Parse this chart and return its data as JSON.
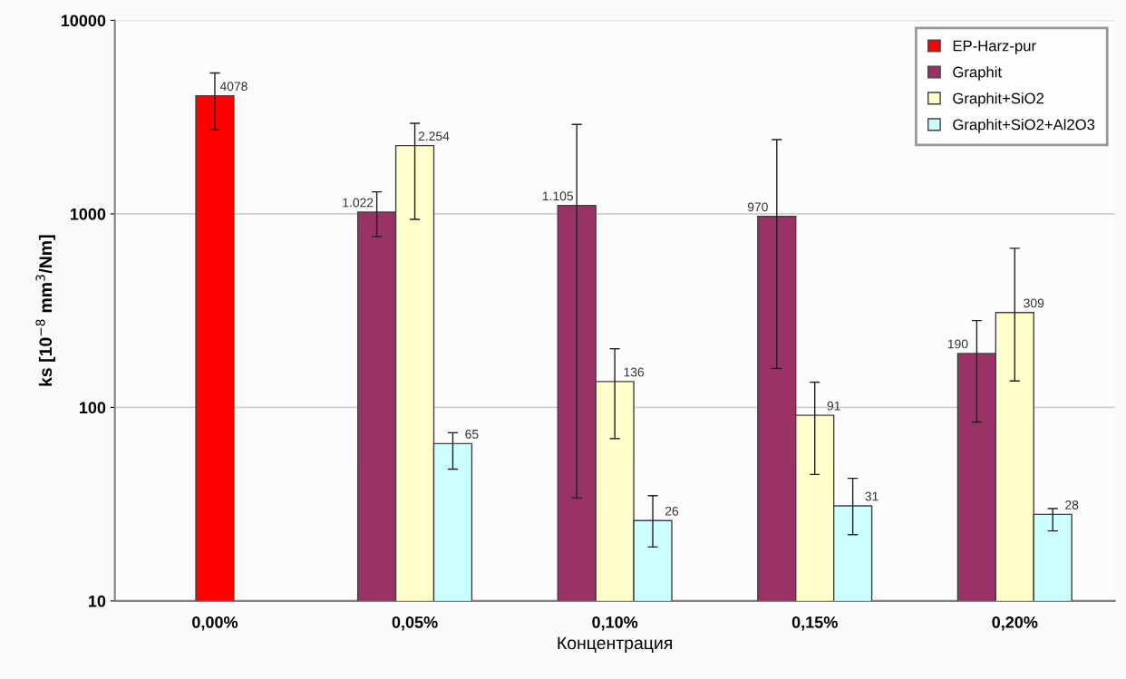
{
  "chart_data": {
    "type": "bar",
    "xlabel": "Концентрация",
    "ylabel": "ks [10$^{−8}$ mm$^{3}$/Nm]",
    "categories": [
      "0,00%",
      "0,05%",
      "0,10%",
      "0,15%",
      "0,20%"
    ],
    "series": [
      {
        "name": "EP-Harz-pur",
        "color": "#ff0000",
        "values": [
          4078,
          null,
          null,
          null,
          null
        ],
        "value_labels": [
          "4078",
          null,
          null,
          null,
          null
        ],
        "errors": [
          [
            2720,
            5350
          ],
          null,
          null,
          null,
          null
        ]
      },
      {
        "name": "Graphit",
        "color": "#993366",
        "values": [
          null,
          1022,
          1105,
          970,
          190
        ],
        "value_labels": [
          null,
          "1.022",
          "1.105",
          "970",
          "190"
        ],
        "errors": [
          null,
          [
            763,
            1300
          ],
          [
            34,
            2900
          ],
          [
            159,
            2420
          ],
          [
            84,
            281
          ]
        ]
      },
      {
        "name": "Graphit+SiO2",
        "color": "#ffffcc",
        "values": [
          null,
          2254,
          136,
          91,
          309
        ],
        "value_labels": [
          null,
          "2.254",
          "136",
          "91",
          "309"
        ],
        "errors": [
          null,
          [
            937,
            2940
          ],
          [
            69,
            201
          ],
          [
            45,
            135
          ],
          [
            137,
            664
          ]
        ]
      },
      {
        "name": "Graphit+SiO2+Al2O3",
        "color": "#ccffff",
        "values": [
          null,
          65,
          26,
          31,
          28
        ],
        "value_labels": [
          null,
          "65",
          "26",
          "31",
          "28"
        ],
        "errors": [
          null,
          [
            48,
            74
          ],
          [
            19,
            35
          ],
          [
            22,
            43
          ],
          [
            23,
            30
          ]
        ]
      }
    ],
    "log": "y",
    "ylim": [
      10,
      10000
    ],
    "yticks": [
      10,
      100,
      1000,
      10000
    ],
    "grid": "y",
    "legend": "top right"
  }
}
